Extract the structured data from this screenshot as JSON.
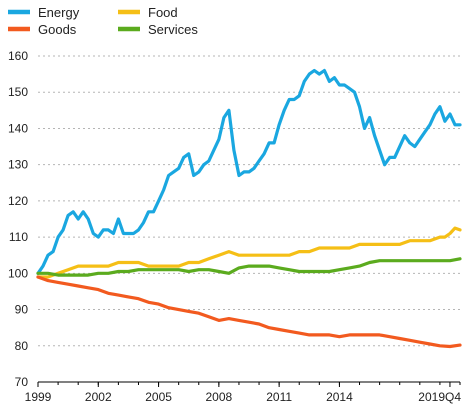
{
  "chart_data": {
    "type": "line",
    "title": "",
    "xlabel": "",
    "ylabel": "",
    "ylim": [
      70,
      160
    ],
    "yticks": [
      70,
      80,
      90,
      100,
      110,
      120,
      130,
      140,
      150,
      160
    ],
    "xlim": [
      1999,
      2020
    ],
    "xticks": [
      {
        "value": 1999,
        "label": "1999"
      },
      {
        "value": 2002,
        "label": "2002"
      },
      {
        "value": 2005,
        "label": "2005"
      },
      {
        "value": 2008,
        "label": "2008"
      },
      {
        "value": 2011,
        "label": "2011"
      },
      {
        "value": 2014,
        "label": "2014"
      },
      {
        "value": 2019.5,
        "label": "2019Q4"
      }
    ],
    "grid": "horizontal",
    "legend_position": "top",
    "series": [
      {
        "name": "Energy",
        "color": "#1aa7e0",
        "points": [
          [
            1999.0,
            100
          ],
          [
            1999.25,
            102
          ],
          [
            1999.5,
            105
          ],
          [
            1999.75,
            106
          ],
          [
            2000.0,
            110
          ],
          [
            2000.25,
            112
          ],
          [
            2000.5,
            116
          ],
          [
            2000.75,
            117
          ],
          [
            2001.0,
            115
          ],
          [
            2001.25,
            117
          ],
          [
            2001.5,
            115
          ],
          [
            2001.75,
            111
          ],
          [
            2002.0,
            110
          ],
          [
            2002.25,
            112
          ],
          [
            2002.5,
            112
          ],
          [
            2002.75,
            111
          ],
          [
            2003.0,
            115
          ],
          [
            2003.25,
            111
          ],
          [
            2003.5,
            111
          ],
          [
            2003.75,
            111
          ],
          [
            2004.0,
            112
          ],
          [
            2004.25,
            114
          ],
          [
            2004.5,
            117
          ],
          [
            2004.75,
            117
          ],
          [
            2005.0,
            120
          ],
          [
            2005.25,
            123
          ],
          [
            2005.5,
            127
          ],
          [
            2005.75,
            128
          ],
          [
            2006.0,
            129
          ],
          [
            2006.25,
            132
          ],
          [
            2006.5,
            133
          ],
          [
            2006.75,
            127
          ],
          [
            2007.0,
            128
          ],
          [
            2007.25,
            130
          ],
          [
            2007.5,
            131
          ],
          [
            2007.75,
            134
          ],
          [
            2008.0,
            137
          ],
          [
            2008.25,
            143
          ],
          [
            2008.5,
            145
          ],
          [
            2008.75,
            134
          ],
          [
            2009.0,
            127
          ],
          [
            2009.25,
            128
          ],
          [
            2009.5,
            128
          ],
          [
            2009.75,
            129
          ],
          [
            2010.0,
            131
          ],
          [
            2010.25,
            133
          ],
          [
            2010.5,
            136
          ],
          [
            2010.75,
            136
          ],
          [
            2011.0,
            141
          ],
          [
            2011.25,
            145
          ],
          [
            2011.5,
            148
          ],
          [
            2011.75,
            148
          ],
          [
            2012.0,
            149
          ],
          [
            2012.25,
            153
          ],
          [
            2012.5,
            155
          ],
          [
            2012.75,
            156
          ],
          [
            2013.0,
            155
          ],
          [
            2013.25,
            156
          ],
          [
            2013.5,
            153
          ],
          [
            2013.75,
            154
          ],
          [
            2014.0,
            152
          ],
          [
            2014.25,
            152
          ],
          [
            2014.5,
            151
          ],
          [
            2014.75,
            150
          ],
          [
            2015.0,
            146
          ],
          [
            2015.25,
            140
          ],
          [
            2015.5,
            143
          ],
          [
            2015.75,
            138
          ],
          [
            2016.0,
            134
          ],
          [
            2016.25,
            130
          ],
          [
            2016.5,
            132
          ],
          [
            2016.75,
            132
          ],
          [
            2017.0,
            135
          ],
          [
            2017.25,
            138
          ],
          [
            2017.5,
            136
          ],
          [
            2017.75,
            135
          ],
          [
            2018.0,
            137
          ],
          [
            2018.25,
            139
          ],
          [
            2018.5,
            141
          ],
          [
            2018.75,
            144
          ],
          [
            2019.0,
            146
          ],
          [
            2019.25,
            142
          ],
          [
            2019.5,
            144
          ],
          [
            2019.75,
            141
          ],
          [
            2020.0,
            141
          ]
        ]
      },
      {
        "name": "Food",
        "color": "#f5bf16",
        "points": [
          [
            1999.0,
            99
          ],
          [
            1999.5,
            99
          ],
          [
            2000.0,
            100
          ],
          [
            2000.5,
            101
          ],
          [
            2001.0,
            102
          ],
          [
            2001.5,
            102
          ],
          [
            2002.0,
            102
          ],
          [
            2002.5,
            102
          ],
          [
            2003.0,
            103
          ],
          [
            2003.5,
            103
          ],
          [
            2004.0,
            103
          ],
          [
            2004.5,
            102
          ],
          [
            2005.0,
            102
          ],
          [
            2005.5,
            102
          ],
          [
            2006.0,
            102
          ],
          [
            2006.5,
            103
          ],
          [
            2007.0,
            103
          ],
          [
            2007.5,
            104
          ],
          [
            2008.0,
            105
          ],
          [
            2008.5,
            106
          ],
          [
            2009.0,
            105
          ],
          [
            2009.5,
            105
          ],
          [
            2010.0,
            105
          ],
          [
            2010.5,
            105
          ],
          [
            2011.0,
            105
          ],
          [
            2011.5,
            105
          ],
          [
            2012.0,
            106
          ],
          [
            2012.5,
            106
          ],
          [
            2013.0,
            107
          ],
          [
            2013.5,
            107
          ],
          [
            2014.0,
            107
          ],
          [
            2014.5,
            107
          ],
          [
            2015.0,
            108
          ],
          [
            2015.5,
            108
          ],
          [
            2016.0,
            108
          ],
          [
            2016.5,
            108
          ],
          [
            2017.0,
            108
          ],
          [
            2017.5,
            109
          ],
          [
            2018.0,
            109
          ],
          [
            2018.5,
            109
          ],
          [
            2019.0,
            110
          ],
          [
            2019.25,
            110
          ],
          [
            2019.5,
            111
          ],
          [
            2019.75,
            112.5
          ],
          [
            2020.0,
            112
          ]
        ]
      },
      {
        "name": "Goods",
        "color": "#f25a1f",
        "points": [
          [
            1999.0,
            99
          ],
          [
            1999.5,
            98
          ],
          [
            2000.0,
            97.5
          ],
          [
            2000.5,
            97
          ],
          [
            2001.0,
            96.5
          ],
          [
            2001.5,
            96
          ],
          [
            2002.0,
            95.5
          ],
          [
            2002.5,
            94.5
          ],
          [
            2003.0,
            94
          ],
          [
            2003.5,
            93.5
          ],
          [
            2004.0,
            93
          ],
          [
            2004.5,
            92
          ],
          [
            2005.0,
            91.5
          ],
          [
            2005.5,
            90.5
          ],
          [
            2006.0,
            90
          ],
          [
            2006.5,
            89.5
          ],
          [
            2007.0,
            89
          ],
          [
            2007.5,
            88
          ],
          [
            2008.0,
            87
          ],
          [
            2008.5,
            87.5
          ],
          [
            2009.0,
            87
          ],
          [
            2009.5,
            86.5
          ],
          [
            2010.0,
            86
          ],
          [
            2010.5,
            85
          ],
          [
            2011.0,
            84.5
          ],
          [
            2011.5,
            84
          ],
          [
            2012.0,
            83.5
          ],
          [
            2012.5,
            83
          ],
          [
            2013.0,
            83
          ],
          [
            2013.5,
            83
          ],
          [
            2014.0,
            82.5
          ],
          [
            2014.5,
            83
          ],
          [
            2015.0,
            83
          ],
          [
            2015.5,
            83
          ],
          [
            2016.0,
            83
          ],
          [
            2016.5,
            82.5
          ],
          [
            2017.0,
            82
          ],
          [
            2017.5,
            81.5
          ],
          [
            2018.0,
            81
          ],
          [
            2018.5,
            80.5
          ],
          [
            2019.0,
            80
          ],
          [
            2019.5,
            79.8
          ],
          [
            2020.0,
            80.2
          ]
        ]
      },
      {
        "name": "Services",
        "color": "#5bab1e",
        "points": [
          [
            1999.0,
            100
          ],
          [
            1999.5,
            100
          ],
          [
            2000.0,
            99.5
          ],
          [
            2000.5,
            99.5
          ],
          [
            2001.0,
            99.5
          ],
          [
            2001.5,
            99.5
          ],
          [
            2002.0,
            100
          ],
          [
            2002.5,
            100
          ],
          [
            2003.0,
            100.5
          ],
          [
            2003.5,
            100.5
          ],
          [
            2004.0,
            101
          ],
          [
            2004.5,
            101
          ],
          [
            2005.0,
            101
          ],
          [
            2005.5,
            101
          ],
          [
            2006.0,
            101
          ],
          [
            2006.5,
            100.5
          ],
          [
            2007.0,
            101
          ],
          [
            2007.5,
            101
          ],
          [
            2008.0,
            100.5
          ],
          [
            2008.5,
            100
          ],
          [
            2009.0,
            101.5
          ],
          [
            2009.5,
            102
          ],
          [
            2010.0,
            102
          ],
          [
            2010.5,
            102
          ],
          [
            2011.0,
            101.5
          ],
          [
            2011.5,
            101
          ],
          [
            2012.0,
            100.5
          ],
          [
            2012.5,
            100.5
          ],
          [
            2013.0,
            100.5
          ],
          [
            2013.5,
            100.5
          ],
          [
            2014.0,
            101
          ],
          [
            2014.5,
            101.5
          ],
          [
            2015.0,
            102
          ],
          [
            2015.5,
            103
          ],
          [
            2016.0,
            103.5
          ],
          [
            2016.5,
            103.5
          ],
          [
            2017.0,
            103.5
          ],
          [
            2017.5,
            103.5
          ],
          [
            2018.0,
            103.5
          ],
          [
            2018.5,
            103.5
          ],
          [
            2019.0,
            103.5
          ],
          [
            2019.5,
            103.5
          ],
          [
            2020.0,
            104
          ]
        ]
      }
    ]
  }
}
